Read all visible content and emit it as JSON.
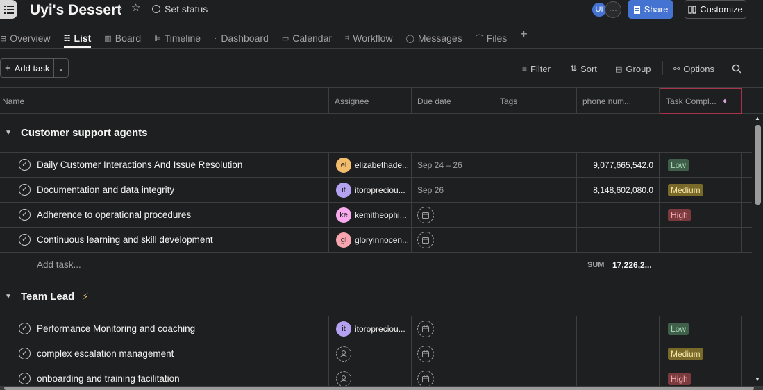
{
  "header": {
    "title": "Uyi's Dessert",
    "set_status": "Set status",
    "avatar_initials": "UI",
    "more": "···",
    "share": "Share",
    "customize": "Customize"
  },
  "tabs": [
    {
      "label": "Overview",
      "icon": "overview-icon"
    },
    {
      "label": "List",
      "icon": "list-icon"
    },
    {
      "label": "Board",
      "icon": "board-icon"
    },
    {
      "label": "Timeline",
      "icon": "timeline-icon"
    },
    {
      "label": "Dashboard",
      "icon": "dashboard-icon"
    },
    {
      "label": "Calendar",
      "icon": "calendar-icon"
    },
    {
      "label": "Workflow",
      "icon": "workflow-icon"
    },
    {
      "label": "Messages",
      "icon": "messages-icon"
    },
    {
      "label": "Files",
      "icon": "files-icon"
    }
  ],
  "active_tab": "List",
  "toolbar": {
    "add_task": "Add task",
    "filter": "Filter",
    "sort": "Sort",
    "group": "Group",
    "options": "Options"
  },
  "columns": {
    "name": "Name",
    "assignee": "Assignee",
    "due_date": "Due date",
    "tags": "Tags",
    "phone": "phone num...",
    "task_complexity": "Task Compl..."
  },
  "sections": [
    {
      "title": "Customer support agents",
      "tasks": [
        {
          "name": "Daily Customer Interactions And Issue Resolution",
          "initials": "el",
          "assignee": "elizabethade...",
          "avatar_color": "#f1bd6c",
          "due": "Sep 24 – 26",
          "phone": "9,077,665,542.0",
          "complexity": "Low"
        },
        {
          "name": "Documentation and data integrity",
          "initials": "it",
          "assignee": "itoropreciou...",
          "avatar_color": "#b4a2f0",
          "due": "Sep 26",
          "phone": "8,148,602,080.0",
          "complexity": "Medium"
        },
        {
          "name": "Adherence to operational procedures",
          "initials": "ke",
          "assignee": "kemitheophi...",
          "avatar_color": "#f9aaef",
          "due": "",
          "phone": "",
          "complexity": "High"
        },
        {
          "name": "Continuous learning and skill development",
          "initials": "gl",
          "assignee": "gloryinnocen...",
          "avatar_color": "#f8a5b0",
          "due": "",
          "phone": "",
          "complexity": ""
        }
      ],
      "add_task": "Add task...",
      "sum_label": "SUM",
      "sum_value": "17,226,2..."
    },
    {
      "title": "Team Lead",
      "tasks": [
        {
          "name": "Performance Monitoring and coaching",
          "initials": "it",
          "assignee": "itoropreciou...",
          "avatar_color": "#b4a2f0",
          "due": "",
          "phone": "",
          "complexity": "Low"
        },
        {
          "name": "complex escalation management",
          "initials": "",
          "assignee": "",
          "avatar_color": "",
          "due": "",
          "phone": "",
          "complexity": "Medium"
        },
        {
          "name": "onboarding and training facilitation",
          "initials": "",
          "assignee": "",
          "avatar_color": "",
          "due": "",
          "phone": "",
          "complexity": "High"
        }
      ]
    }
  ]
}
